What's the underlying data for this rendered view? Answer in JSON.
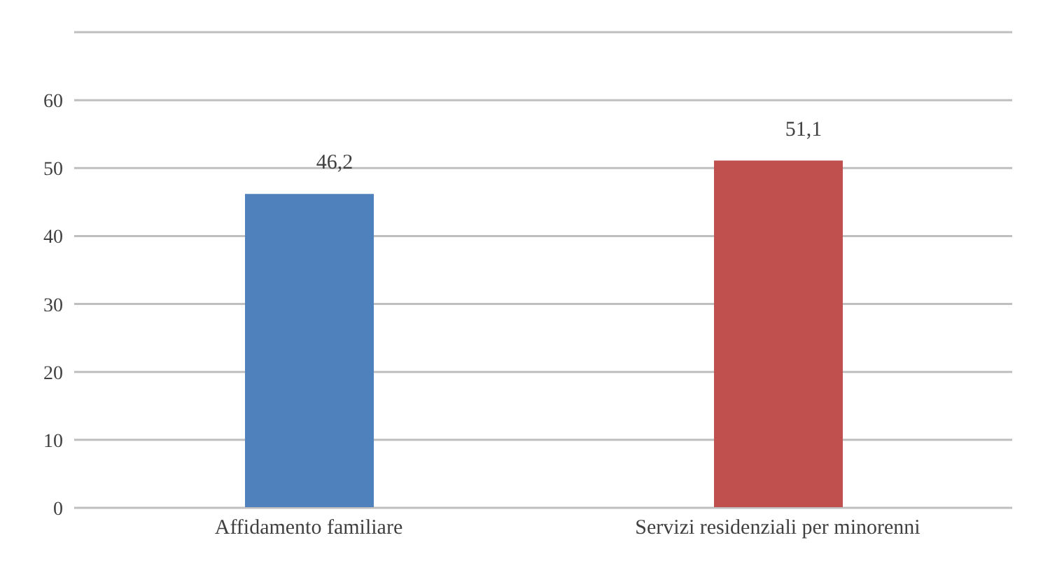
{
  "chart_data": {
    "type": "bar",
    "categories": [
      "Affidamento familiare",
      "Servizi residenziali per minorenni"
    ],
    "values": [
      46.2,
      51.1
    ],
    "colors": [
      "#4f81bd",
      "#c0504d"
    ],
    "value_labels": [
      "46,2",
      "51,1"
    ],
    "ylim": [
      0,
      70
    ],
    "yticks": [
      0,
      10,
      20,
      30,
      40,
      50,
      60,
      {
        "value": 70,
        "label": null
      }
    ],
    "grid": "y"
  }
}
